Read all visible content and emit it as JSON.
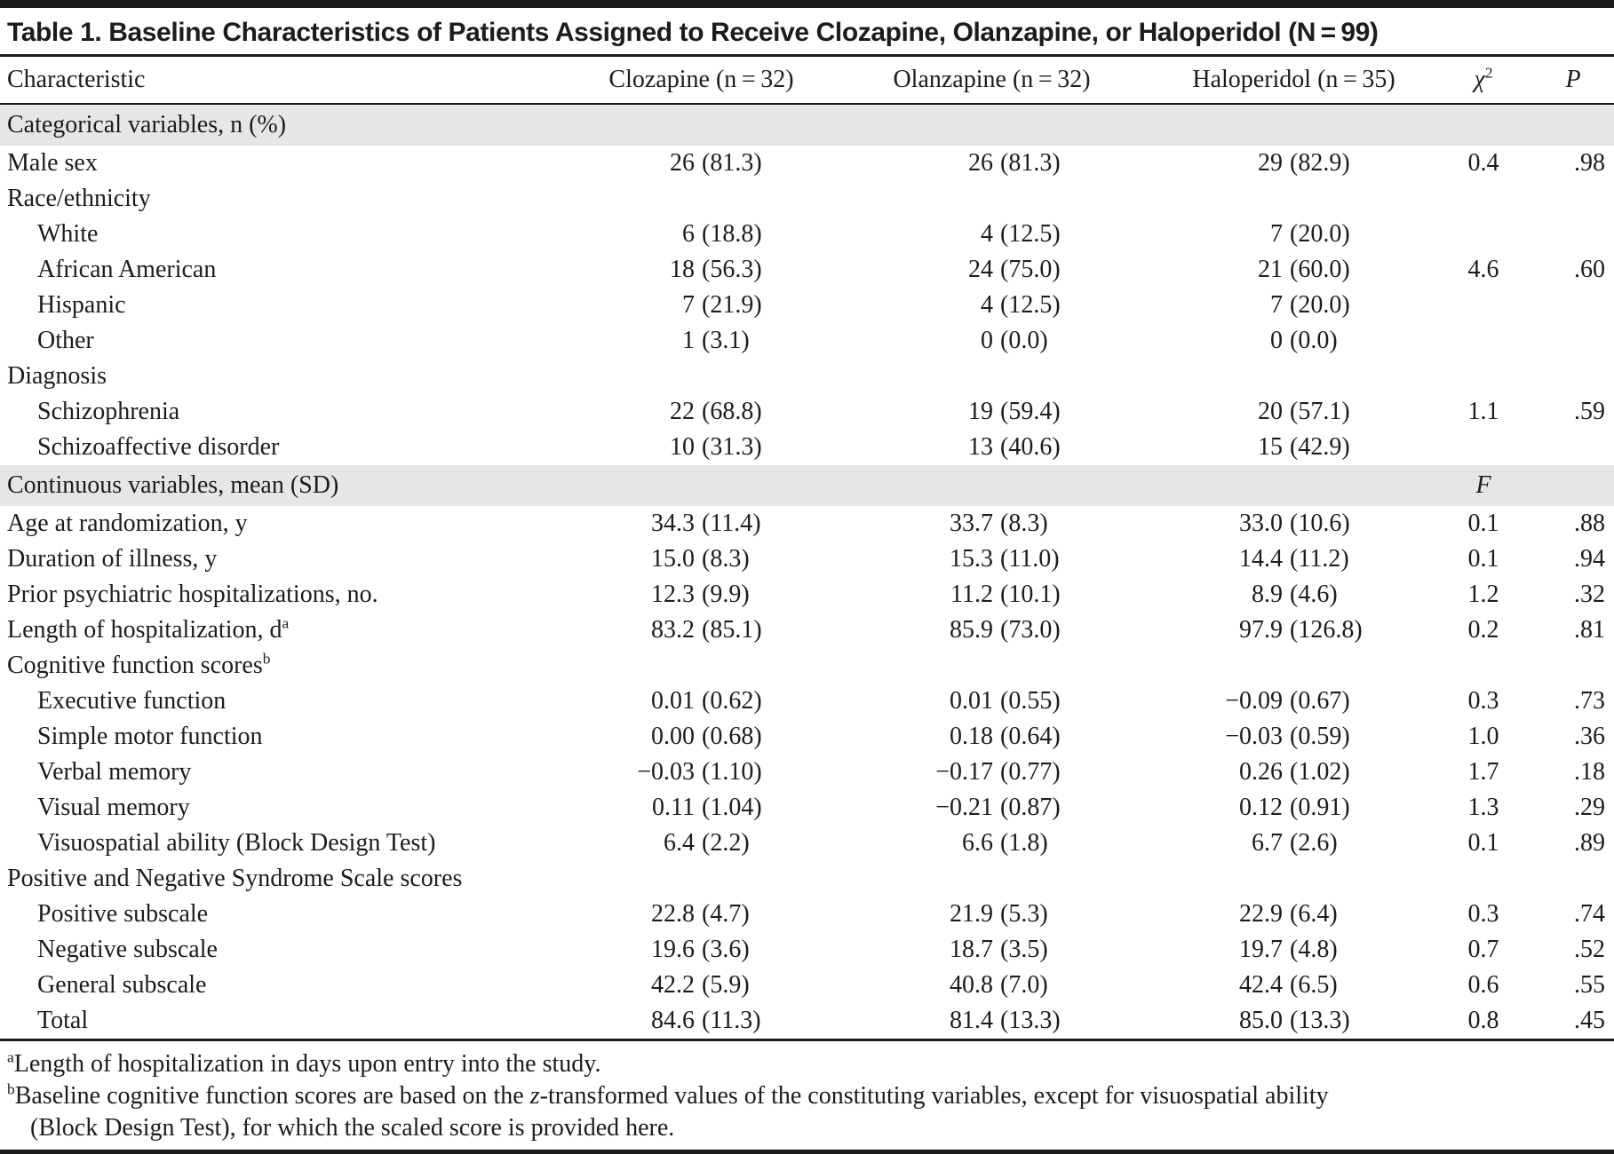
{
  "title": "Table 1. Baseline Characteristics of Patients Assigned to Receive Clozapine, Olanzapine, or Haloperidol (N = 99)",
  "colors": {
    "band_bg": "#e6e6e6",
    "rule": "#1a1a1a",
    "text": "#1c1c1c"
  },
  "header": {
    "characteristic": "Characteristic",
    "clozapine": "Clozapine (n = 32)",
    "olanzapine": "Olanzapine (n = 32)",
    "haloperidol": "Haloperidol (n = 35)",
    "chi2_base": "χ",
    "chi2_sup": "2",
    "p": "P"
  },
  "table": {
    "sections": [
      {
        "band_label": "Categorical variables, n (%)",
        "band_stat": "",
        "rows": [
          {
            "label": "Male sex",
            "indent": false,
            "clozapine": "26 (81.3)",
            "olanzapine": "26 (81.3)",
            "haloperidol": "29 (82.9)",
            "stat": "0.4",
            "p": ".98"
          },
          {
            "label": "Race/ethnicity",
            "indent": false,
            "clozapine": "",
            "olanzapine": "",
            "haloperidol": "",
            "stat": "",
            "p": ""
          },
          {
            "label": "White",
            "indent": true,
            "clozapine": "6 (18.8)",
            "olanzapine": "4 (12.5)",
            "haloperidol": "7 (20.0)",
            "stat": "",
            "p": ""
          },
          {
            "label": "African American",
            "indent": true,
            "clozapine": "18 (56.3)",
            "olanzapine": "24 (75.0)",
            "haloperidol": "21 (60.0)",
            "stat": "4.6",
            "p": ".60"
          },
          {
            "label": "Hispanic",
            "indent": true,
            "clozapine": "7 (21.9)",
            "olanzapine": "4 (12.5)",
            "haloperidol": "7 (20.0)",
            "stat": "",
            "p": ""
          },
          {
            "label": "Other",
            "indent": true,
            "clozapine": "1 (3.1)",
            "olanzapine": "0 (0.0)",
            "haloperidol": "0 (0.0)",
            "stat": "",
            "p": ""
          },
          {
            "label": "Diagnosis",
            "indent": false,
            "clozapine": "",
            "olanzapine": "",
            "haloperidol": "",
            "stat": "",
            "p": ""
          },
          {
            "label": "Schizophrenia",
            "indent": true,
            "clozapine": "22 (68.8)",
            "olanzapine": "19 (59.4)",
            "haloperidol": "20 (57.1)",
            "stat": "1.1",
            "p": ".59"
          },
          {
            "label": "Schizoaffective disorder",
            "indent": true,
            "clozapine": "10 (31.3)",
            "olanzapine": "13 (40.6)",
            "haloperidol": "15 (42.9)",
            "stat": "",
            "p": ""
          }
        ]
      },
      {
        "band_label": "Continuous variables, mean (SD)",
        "band_stat": "F",
        "rows": [
          {
            "label": "Age at randomization, y",
            "indent": false,
            "clozapine": "34.3 (11.4)",
            "olanzapine": "33.7 (8.3)",
            "haloperidol": "33.0 (10.6)",
            "stat": "0.1",
            "p": ".88"
          },
          {
            "label": "Duration of illness, y",
            "indent": false,
            "clozapine": "15.0 (8.3)",
            "olanzapine": "15.3 (11.0)",
            "haloperidol": "14.4 (11.2)",
            "stat": "0.1",
            "p": ".94"
          },
          {
            "label": "Prior psychiatric hospitalizations, no.",
            "indent": false,
            "clozapine": "12.3 (9.9)",
            "olanzapine": "11.2 (10.1)",
            "haloperidol": "8.9 (4.6)",
            "stat": "1.2",
            "p": ".32"
          },
          {
            "label": "Length of hospitalization, d",
            "sup": "a",
            "indent": false,
            "clozapine": "83.2 (85.1)",
            "olanzapine": "85.9 (73.0)",
            "haloperidol": "97.9 (126.8)",
            "stat": "0.2",
            "p": ".81"
          },
          {
            "label": "Cognitive function scores",
            "sup": "b",
            "indent": false,
            "clozapine": "",
            "olanzapine": "",
            "haloperidol": "",
            "stat": "",
            "p": ""
          },
          {
            "label": "Executive function",
            "indent": true,
            "clozapine": "0.01 (0.62)",
            "olanzapine": "0.01 (0.55)",
            "haloperidol": "−0.09 (0.67)",
            "stat": "0.3",
            "p": ".73"
          },
          {
            "label": "Simple motor function",
            "indent": true,
            "clozapine": "0.00 (0.68)",
            "olanzapine": "0.18 (0.64)",
            "haloperidol": "−0.03 (0.59)",
            "stat": "1.0",
            "p": ".36"
          },
          {
            "label": "Verbal memory",
            "indent": true,
            "clozapine": "−0.03 (1.10)",
            "olanzapine": "−0.17 (0.77)",
            "haloperidol": "0.26 (1.02)",
            "stat": "1.7",
            "p": ".18"
          },
          {
            "label": "Visual memory",
            "indent": true,
            "clozapine": "0.11 (1.04)",
            "olanzapine": "−0.21 (0.87)",
            "haloperidol": "0.12 (0.91)",
            "stat": "1.3",
            "p": ".29"
          },
          {
            "label": "Visuospatial ability (Block Design Test)",
            "indent": true,
            "clozapine": "6.4 (2.2)",
            "olanzapine": "6.6 (1.8)",
            "haloperidol": "6.7 (2.6)",
            "stat": "0.1",
            "p": ".89"
          },
          {
            "label": "Positive and Negative Syndrome Scale scores",
            "indent": false,
            "clozapine": "",
            "olanzapine": "",
            "haloperidol": "",
            "stat": "",
            "p": ""
          },
          {
            "label": "Positive subscale",
            "indent": true,
            "clozapine": "22.8 (4.7)",
            "olanzapine": "21.9 (5.3)",
            "haloperidol": "22.9 (6.4)",
            "stat": "0.3",
            "p": ".74"
          },
          {
            "label": "Negative subscale",
            "indent": true,
            "clozapine": "19.6 (3.6)",
            "olanzapine": "18.7 (3.5)",
            "haloperidol": "19.7 (4.8)",
            "stat": "0.7",
            "p": ".52"
          },
          {
            "label": "General subscale",
            "indent": true,
            "clozapine": "42.2 (5.9)",
            "olanzapine": "40.8 (7.0)",
            "haloperidol": "42.4 (6.5)",
            "stat": "0.6",
            "p": ".55"
          },
          {
            "label": "Total",
            "indent": true,
            "clozapine": "84.6 (11.3)",
            "olanzapine": "81.4 (13.3)",
            "haloperidol": "85.0 (13.3)",
            "stat": "0.8",
            "p": ".45"
          }
        ]
      }
    ]
  },
  "footnotes": {
    "a": {
      "marker": "a",
      "text": "Length of hospitalization in days upon entry into the study."
    },
    "b": {
      "marker": "b",
      "line1_pre": "Baseline cognitive function scores are based on the ",
      "line1_italic": "z",
      "line1_post": "-transformed values of the constituting variables, except for visuospatial ability",
      "line2": "(Block Design Test), for which the scaled score is provided here."
    }
  }
}
